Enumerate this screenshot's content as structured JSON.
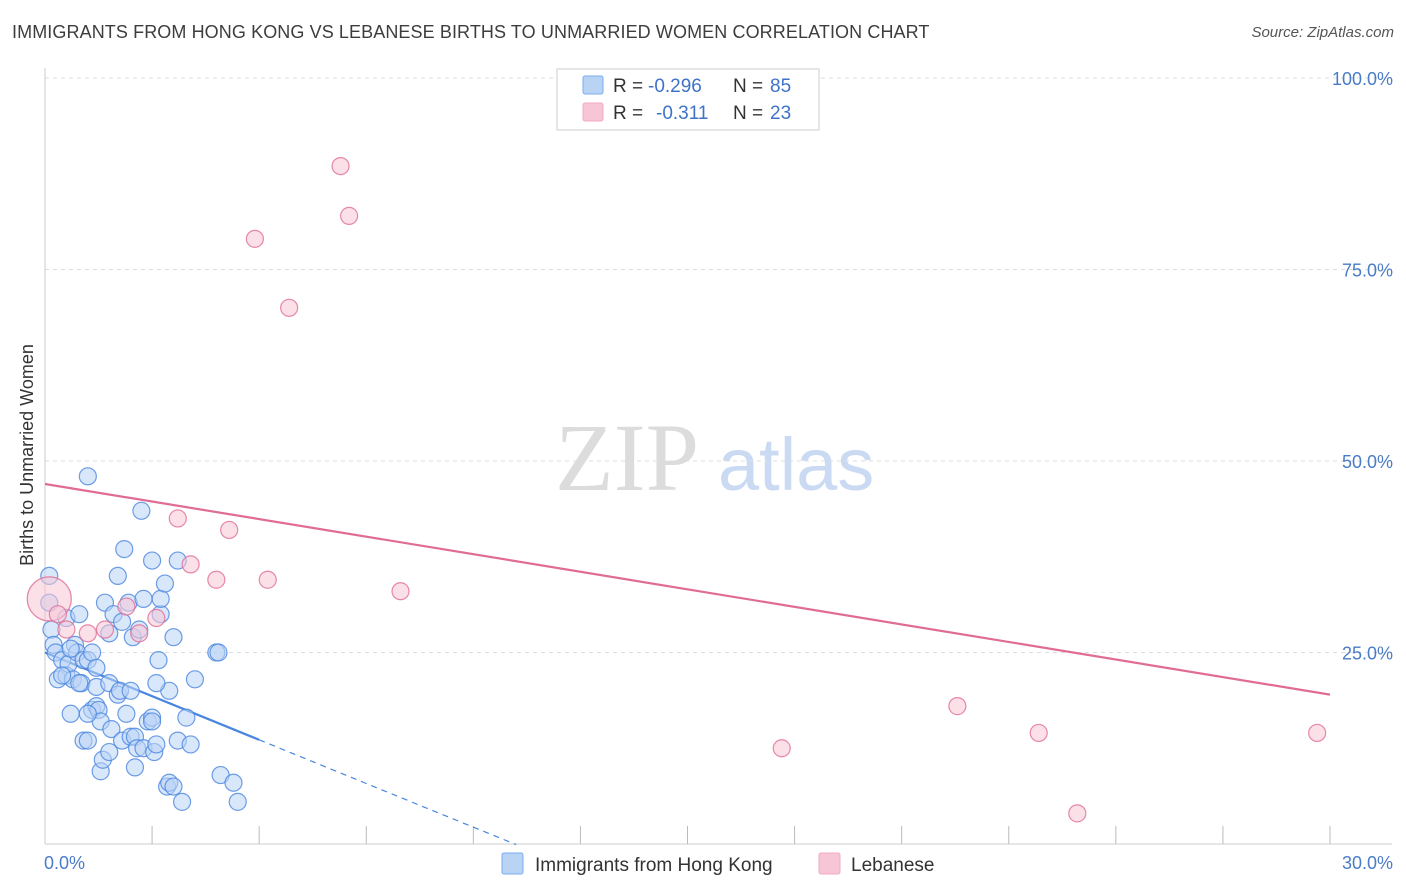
{
  "title": "IMMIGRANTS FROM HONG KONG VS LEBANESE BIRTHS TO UNMARRIED WOMEN CORRELATION CHART",
  "source": "Source: ZipAtlas.com",
  "watermark": {
    "zip": "ZIP",
    "atlas": "atlas"
  },
  "legend": {
    "rows": [
      {
        "r_label": "R =",
        "r_value": "-0.296",
        "n_label": "N =",
        "n_value": "85",
        "color": "#7aaef0"
      },
      {
        "r_label": "R =",
        "r_value": "-0.311",
        "n_label": "N =",
        "n_value": "23",
        "color": "#f4a8c0"
      }
    ]
  },
  "chart_data": {
    "type": "scatter",
    "title": "IMMIGRANTS FROM HONG KONG VS LEBANESE BIRTHS TO UNMARRIED WOMEN CORRELATION CHART",
    "xlabel": "",
    "ylabel": "Births to Unmarried Women",
    "xlim": [
      0,
      30
    ],
    "ylim": [
      0,
      100
    ],
    "x_tick_labels": [
      "0.0%",
      "30.0%"
    ],
    "y_ticks": [
      25,
      50,
      75,
      100
    ],
    "y_tick_labels": [
      "25.0%",
      "50.0%",
      "75.0%",
      "100.0%"
    ],
    "grid": true,
    "series": [
      {
        "name": "Immigrants from Hong Kong",
        "color": "#4a86e0",
        "fill": "#b9d3f5",
        "trend": {
          "x": [
            0,
            5.0
          ],
          "y": [
            25.0,
            13.6
          ],
          "dashed_extension_to_x": 11.0
        },
        "points": [
          [
            0.1,
            35
          ],
          [
            0.1,
            31.5
          ],
          [
            0.15,
            28
          ],
          [
            0.2,
            26
          ],
          [
            0.25,
            25
          ],
          [
            0.3,
            21.5
          ],
          [
            0.4,
            24
          ],
          [
            0.5,
            29.5
          ],
          [
            0.5,
            22
          ],
          [
            0.55,
            23.5
          ],
          [
            0.6,
            17
          ],
          [
            0.65,
            21.5
          ],
          [
            0.7,
            26
          ],
          [
            0.75,
            25
          ],
          [
            0.8,
            30
          ],
          [
            0.85,
            21
          ],
          [
            0.9,
            24
          ],
          [
            0.9,
            13.5
          ],
          [
            1.0,
            13.5
          ],
          [
            1.0,
            24
          ],
          [
            1.0,
            48
          ],
          [
            1.1,
            25
          ],
          [
            1.1,
            17.5
          ],
          [
            1.2,
            20.5
          ],
          [
            1.2,
            18
          ],
          [
            1.25,
            17.5
          ],
          [
            1.3,
            16
          ],
          [
            1.3,
            9.5
          ],
          [
            1.35,
            11
          ],
          [
            1.4,
            31.5
          ],
          [
            1.5,
            21
          ],
          [
            1.5,
            27.5
          ],
          [
            1.55,
            15
          ],
          [
            1.6,
            30
          ],
          [
            1.7,
            19.5
          ],
          [
            1.7,
            35
          ],
          [
            1.75,
            20
          ],
          [
            1.8,
            13.5
          ],
          [
            1.8,
            29
          ],
          [
            1.85,
            38.5
          ],
          [
            1.9,
            17
          ],
          [
            1.95,
            31.5
          ],
          [
            2.0,
            14
          ],
          [
            2.05,
            27
          ],
          [
            2.1,
            10
          ],
          [
            2.1,
            14
          ],
          [
            2.15,
            12.5
          ],
          [
            2.2,
            28
          ],
          [
            2.25,
            43.5
          ],
          [
            2.3,
            12.5
          ],
          [
            2.4,
            16
          ],
          [
            2.5,
            16.5
          ],
          [
            2.5,
            37
          ],
          [
            2.5,
            16
          ],
          [
            2.55,
            12
          ],
          [
            2.6,
            13
          ],
          [
            2.65,
            24
          ],
          [
            2.7,
            30
          ],
          [
            2.7,
            32
          ],
          [
            2.8,
            34
          ],
          [
            2.85,
            7.5
          ],
          [
            2.9,
            20
          ],
          [
            2.9,
            8
          ],
          [
            3.0,
            7.5
          ],
          [
            3.1,
            37
          ],
          [
            3.1,
            13.5
          ],
          [
            3.2,
            5.5
          ],
          [
            3.3,
            16.5
          ],
          [
            3.4,
            13
          ],
          [
            3.5,
            21.5
          ],
          [
            4.0,
            25
          ],
          [
            4.05,
            25
          ],
          [
            4.1,
            9
          ],
          [
            4.4,
            8
          ],
          [
            4.5,
            5.5
          ],
          [
            0.4,
            22
          ],
          [
            0.6,
            25.5
          ],
          [
            0.8,
            21
          ],
          [
            1.0,
            17
          ],
          [
            1.2,
            23
          ],
          [
            1.5,
            12
          ],
          [
            2.0,
            20
          ],
          [
            2.3,
            32
          ],
          [
            2.6,
            21
          ],
          [
            3.0,
            27
          ]
        ]
      },
      {
        "name": "Lebanese",
        "color": "#e06c96",
        "fill": "#f7c6d6",
        "trend": {
          "x": [
            0,
            30
          ],
          "y": [
            47.0,
            19.5
          ]
        },
        "points": [
          [
            0.1,
            32
          ],
          [
            0.5,
            28
          ],
          [
            1.0,
            27.5
          ],
          [
            1.4,
            28
          ],
          [
            1.9,
            31
          ],
          [
            2.2,
            27.5
          ],
          [
            2.6,
            29.5
          ],
          [
            3.1,
            42.5
          ],
          [
            3.4,
            36.5
          ],
          [
            4.0,
            34.5
          ],
          [
            4.3,
            41
          ],
          [
            4.9,
            79
          ],
          [
            5.2,
            34.5
          ],
          [
            5.7,
            70
          ],
          [
            6.9,
            88.5
          ],
          [
            7.1,
            82
          ],
          [
            8.3,
            33
          ],
          [
            17.2,
            12.5
          ],
          [
            21.3,
            18
          ],
          [
            23.2,
            14.5
          ],
          [
            24.1,
            4
          ],
          [
            29.7,
            14.5
          ],
          [
            0.3,
            30
          ]
        ]
      }
    ]
  }
}
